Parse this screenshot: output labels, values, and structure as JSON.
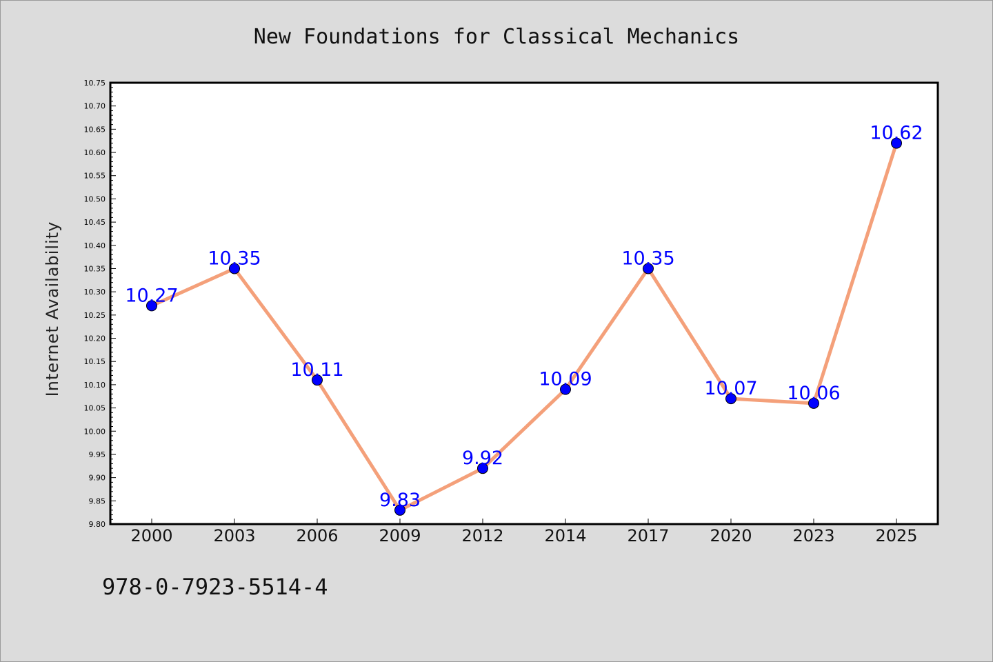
{
  "chart_data": {
    "type": "line",
    "title": "New Foundations for Classical Mechanics",
    "ylabel": "Internet Availability",
    "xlabel": "",
    "categories": [
      "2000",
      "2003",
      "2006",
      "2009",
      "2012",
      "2014",
      "2017",
      "2020",
      "2023",
      "2025"
    ],
    "values": [
      10.27,
      10.35,
      10.11,
      9.83,
      9.92,
      10.09,
      10.35,
      10.07,
      10.06,
      10.62
    ],
    "data_labels": [
      "10.27",
      "10.35",
      "10.11",
      "9.83",
      "9.92",
      "10.09",
      "10.35",
      "10.07",
      "10.06",
      "10.62"
    ],
    "ylim": [
      9.8,
      10.75
    ],
    "yticks": [
      "9.80",
      "9.85",
      "9.90",
      "9.95",
      "10.00",
      "10.05",
      "10.10",
      "10.15",
      "10.20",
      "10.25",
      "10.30",
      "10.35",
      "10.40",
      "10.45",
      "10.50",
      "10.55",
      "10.60",
      "10.65",
      "10.70",
      "10.75"
    ],
    "grid": false,
    "line_color": "#f4a07a",
    "marker_color": "#0000ff",
    "label_color": "#0000ff"
  },
  "footer": {
    "isbn": "978-0-7923-5514-4"
  }
}
